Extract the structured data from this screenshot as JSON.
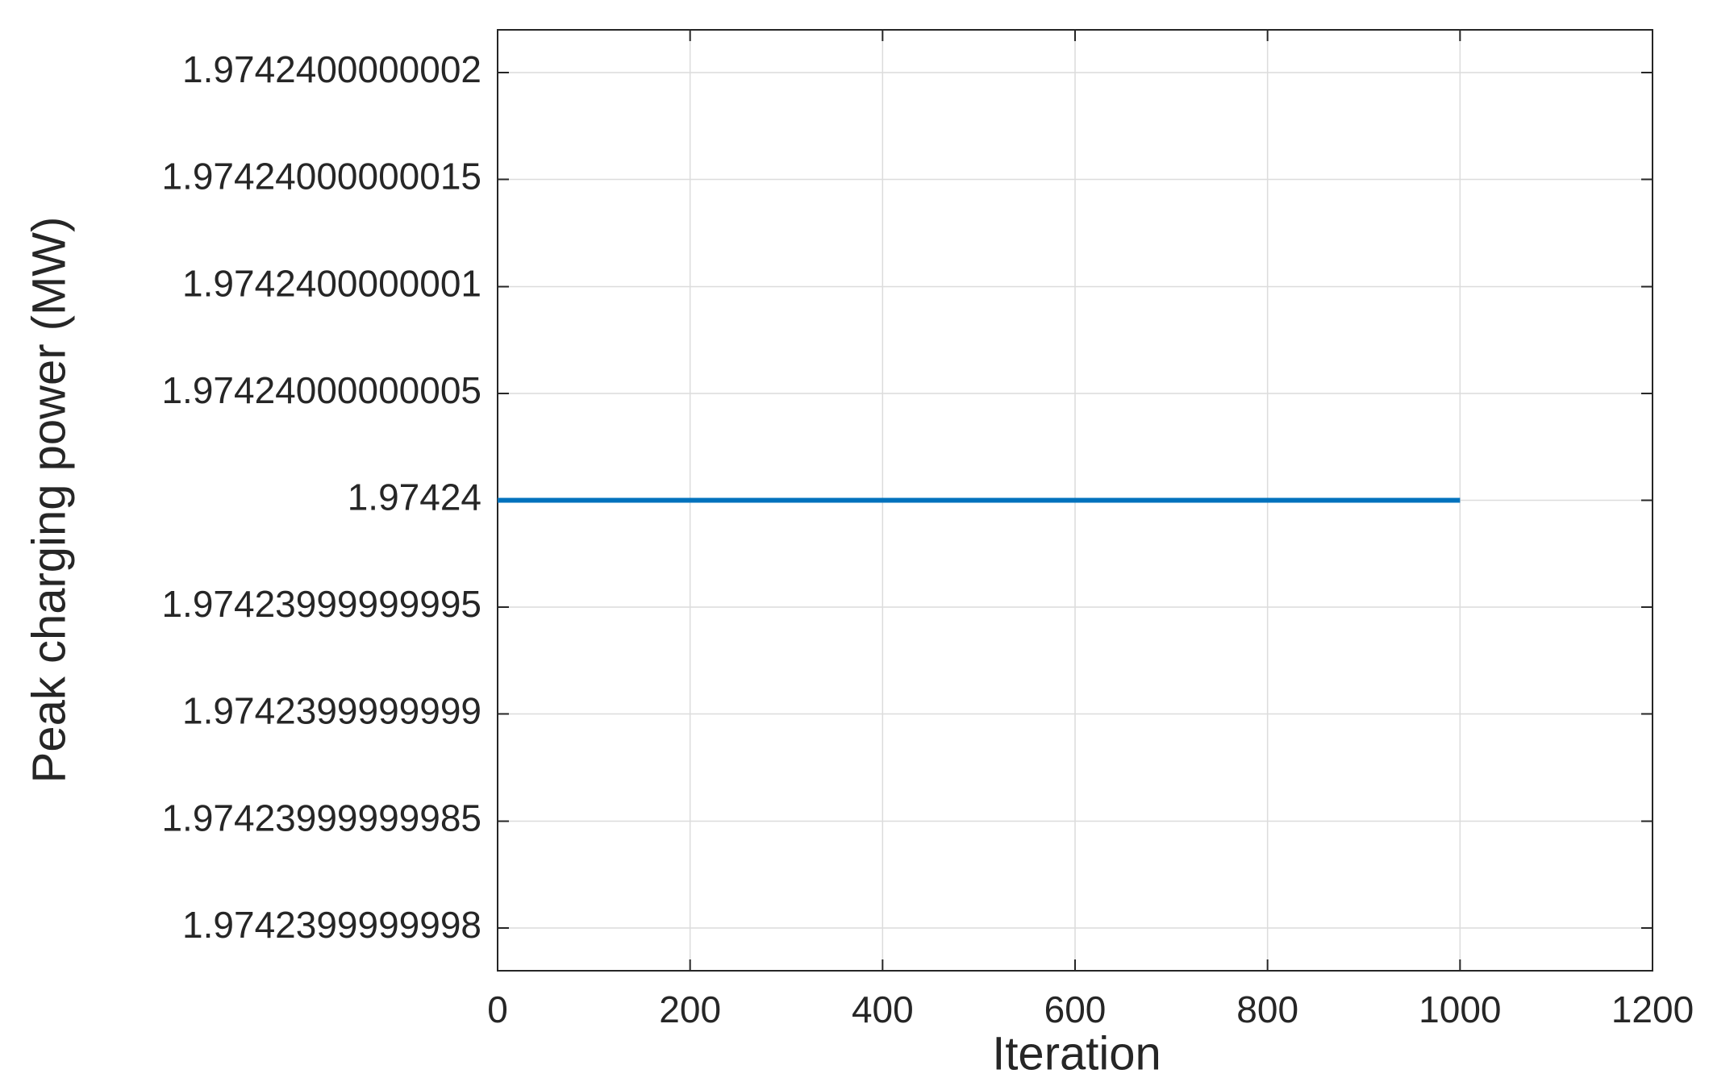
{
  "chart_data": {
    "type": "line",
    "x_label": "Iteration",
    "y_label": "Peak charging power (MW)",
    "x": [
      0,
      1000
    ],
    "series": [
      {
        "name": "Peak charging power",
        "color": "#0072bd",
        "values": [
          1.97424,
          1.97424
        ]
      }
    ],
    "xlim": [
      0,
      1200
    ],
    "xticks": [
      0,
      200,
      400,
      600,
      800,
      1000,
      1200
    ],
    "ylim": [
      1.97423999999978,
      1.97424000000022
    ],
    "yticks": [
      1.9742400000002,
      1.97424000000015,
      1.9742400000001,
      1.97424000000005,
      1.97424,
      1.97423999999995,
      1.9742399999999,
      1.97423999999985,
      1.9742399999998
    ],
    "grid": true
  }
}
